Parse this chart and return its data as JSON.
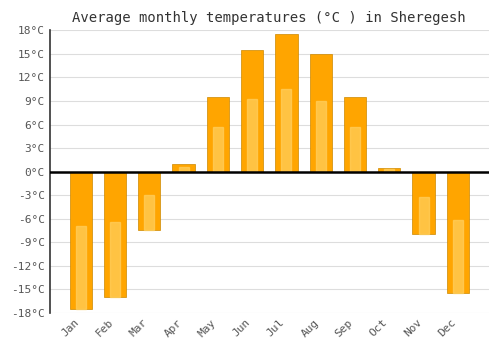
{
  "title": "Average monthly temperatures (°C ) in Sheregesh",
  "months": [
    "Jan",
    "Feb",
    "Mar",
    "Apr",
    "May",
    "Jun",
    "Jul",
    "Aug",
    "Sep",
    "Oct",
    "Nov",
    "Dec"
  ],
  "values": [
    -17.5,
    -16.0,
    -7.5,
    1.0,
    9.5,
    15.5,
    17.5,
    15.0,
    9.5,
    0.5,
    -8.0,
    -15.5
  ],
  "bar_color": "#FFA500",
  "bar_color_grad_bottom": "#FFD060",
  "ylim": [
    -18,
    18
  ],
  "yticks": [
    -18,
    -15,
    -12,
    -9,
    -6,
    -3,
    0,
    3,
    6,
    9,
    12,
    15,
    18
  ],
  "ytick_labels": [
    "-18°C",
    "-15°C",
    "-12°C",
    "-9°C",
    "-6°C",
    "-3°C",
    "0°C",
    "3°C",
    "6°C",
    "9°C",
    "12°C",
    "15°C",
    "18°C"
  ],
  "background_color": "#ffffff",
  "plot_bg_color": "#ffffff",
  "grid_color": "#dddddd",
  "title_fontsize": 10,
  "tick_fontsize": 8,
  "zero_line_color": "#000000",
  "bar_edge_color": "#cc8800",
  "left_spine_color": "#333333",
  "bar_width": 0.65
}
